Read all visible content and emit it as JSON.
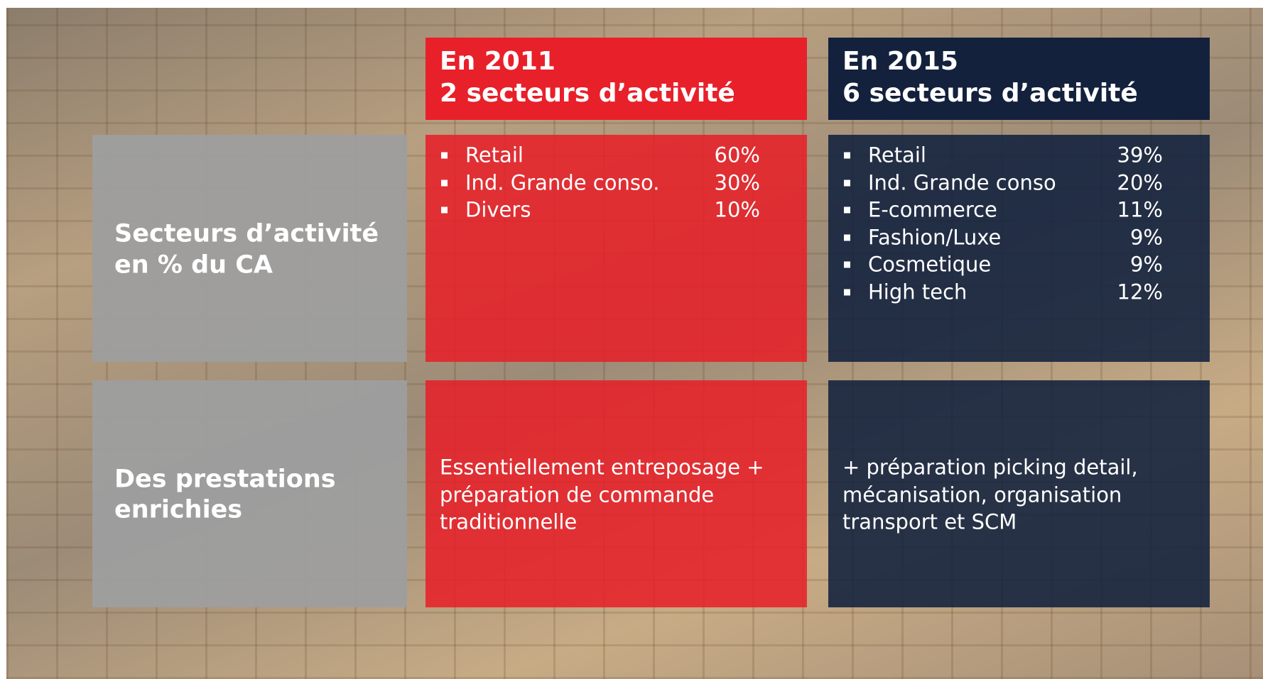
{
  "row_labels": [
    [
      "Secteurs d’activité",
      "en % du CA"
    ],
    [
      "Des prestations",
      "enrichies"
    ]
  ],
  "columns": [
    {
      "header": [
        "En 2011",
        "2 secteurs d’activité"
      ],
      "sectors": [
        {
          "name": "Retail",
          "share": "60%"
        },
        {
          "name": "Ind. Grande conso.",
          "share": "30%"
        },
        {
          "name": "Divers",
          "share": "10%"
        }
      ],
      "services": [
        "Essentiellement entreposage +",
        "préparation de commande",
        "traditionnelle"
      ]
    },
    {
      "header": [
        "En 2015",
        "6 secteurs d’activité"
      ],
      "sectors": [
        {
          "name": "Retail",
          "share": "39%"
        },
        {
          "name": "Ind. Grande conso",
          "share": "20%"
        },
        {
          "name": "E-commerce",
          "share": "11%"
        },
        {
          "name": "Fashion/Luxe",
          "share": "9%"
        },
        {
          "name": "Cosmetique",
          "share": "9%"
        },
        {
          "name": "High tech",
          "share": "12%"
        }
      ],
      "services": [
        "+ préparation picking detail,",
        "mécanisation, organisation",
        "transport et SCM"
      ]
    }
  ]
}
